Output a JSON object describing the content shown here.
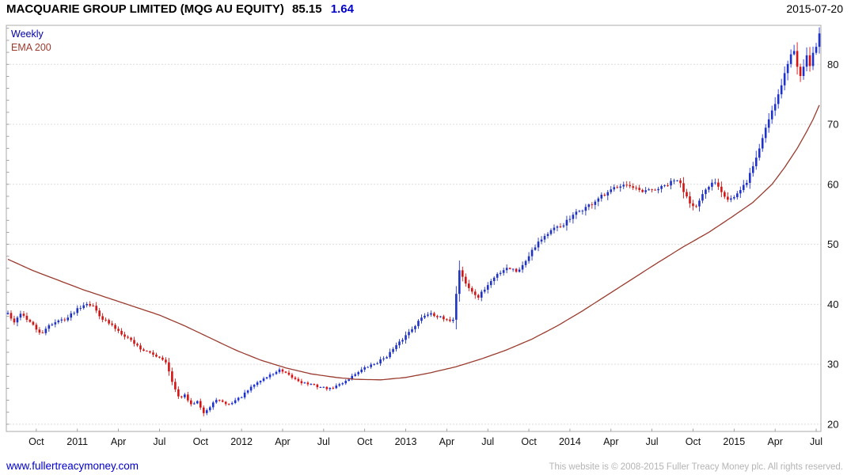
{
  "header": {
    "name": "MACQUARIE GROUP LIMITED (MQG AU EQUITY)",
    "price": "85.15",
    "change": "1.64",
    "date": "2015-07-20"
  },
  "legend": {
    "series": "Weekly",
    "ema": "EMA 200"
  },
  "footer": {
    "site": "www.fullertreacymoney.com",
    "copyright": "This website is © 2008-2015 Fuller Treacy Money plc. All rights reserved."
  },
  "colors": {
    "up": "#1e32c8",
    "down": "#d41414",
    "ema": "#9a3b2e",
    "grid": "#dcdcdc",
    "border": "#ababab",
    "tick": "#8a8a8a",
    "axis_text": "#111111",
    "legend_series": "#0000a8",
    "title_text": "#000000",
    "change_text": "#0000cc"
  },
  "chart_data": {
    "type": "candlestick",
    "title": "MACQUARIE GROUP LIMITED (MQG AU EQUITY) 85.15 1.64",
    "instrument": "MQG AU EQUITY",
    "interval": "Weekly",
    "overlay": "EMA 200",
    "last_price": 85.15,
    "change": 1.64,
    "as_of": "2015-07-20",
    "grid": "horizontal-only",
    "legend_position": "top-left",
    "ylim": [
      18.8,
      86.5
    ],
    "y_ticks": [
      20,
      30,
      40,
      50,
      60,
      70,
      80
    ],
    "weeks_total": 258,
    "x_ticks": [
      {
        "label": "Oct",
        "week": 9
      },
      {
        "label": "2011",
        "week": 22
      },
      {
        "label": "Apr",
        "week": 35
      },
      {
        "label": "Jul",
        "week": 48
      },
      {
        "label": "Oct",
        "week": 61
      },
      {
        "label": "2012",
        "week": 74
      },
      {
        "label": "Apr",
        "week": 87
      },
      {
        "label": "Jul",
        "week": 100
      },
      {
        "label": "Oct",
        "week": 113
      },
      {
        "label": "2013",
        "week": 126
      },
      {
        "label": "Apr",
        "week": 139
      },
      {
        "label": "Jul",
        "week": 152
      },
      {
        "label": "Oct",
        "week": 165
      },
      {
        "label": "2014",
        "week": 178
      },
      {
        "label": "Apr",
        "week": 191
      },
      {
        "label": "Jul",
        "week": 204
      },
      {
        "label": "Oct",
        "week": 217
      },
      {
        "label": "2015",
        "week": 230
      },
      {
        "label": "Apr",
        "week": 243
      },
      {
        "label": "Jul",
        "week": 256
      }
    ],
    "close_anchors": [
      [
        0,
        38.5
      ],
      [
        2,
        36.8
      ],
      [
        4,
        38.6
      ],
      [
        7,
        37.0
      ],
      [
        9,
        35.8
      ],
      [
        11,
        35.0
      ],
      [
        13,
        36.6
      ],
      [
        16,
        37.2
      ],
      [
        19,
        37.8
      ],
      [
        22,
        39.3
      ],
      [
        25,
        40.3
      ],
      [
        27,
        39.6
      ],
      [
        30,
        37.6
      ],
      [
        33,
        36.4
      ],
      [
        36,
        35.2
      ],
      [
        39,
        34.0
      ],
      [
        42,
        32.6
      ],
      [
        45,
        31.8
      ],
      [
        48,
        31.2
      ],
      [
        50,
        30.5
      ],
      [
        52,
        27.0
      ],
      [
        54,
        24.5
      ],
      [
        56,
        24.8
      ],
      [
        58,
        23.2
      ],
      [
        60,
        24.0
      ],
      [
        62,
        21.9
      ],
      [
        64,
        22.8
      ],
      [
        66,
        24.2
      ],
      [
        68,
        23.6
      ],
      [
        70,
        23.3
      ],
      [
        72,
        24.0
      ],
      [
        74,
        24.6
      ],
      [
        76,
        25.6
      ],
      [
        78,
        26.6
      ],
      [
        80,
        27.3
      ],
      [
        83,
        28.2
      ],
      [
        86,
        29.0
      ],
      [
        88,
        28.4
      ],
      [
        90,
        27.8
      ],
      [
        93,
        27.0
      ],
      [
        96,
        26.6
      ],
      [
        99,
        26.2
      ],
      [
        102,
        25.9
      ],
      [
        105,
        26.6
      ],
      [
        108,
        27.6
      ],
      [
        111,
        28.8
      ],
      [
        114,
        29.6
      ],
      [
        117,
        30.3
      ],
      [
        120,
        31.4
      ],
      [
        123,
        33.0
      ],
      [
        126,
        34.8
      ],
      [
        129,
        36.6
      ],
      [
        132,
        38.2
      ],
      [
        134,
        38.6
      ],
      [
        136,
        38.0
      ],
      [
        139,
        37.2
      ],
      [
        141,
        37.6
      ],
      [
        143,
        45.8
      ],
      [
        145,
        43.5
      ],
      [
        147,
        42.0
      ],
      [
        149,
        41.2
      ],
      [
        152,
        43.2
      ],
      [
        155,
        45.0
      ],
      [
        158,
        46.2
      ],
      [
        161,
        45.6
      ],
      [
        163,
        46.4
      ],
      [
        166,
        49.2
      ],
      [
        169,
        51.0
      ],
      [
        172,
        52.2
      ],
      [
        175,
        53.0
      ],
      [
        178,
        54.2
      ],
      [
        181,
        55.6
      ],
      [
        184,
        56.4
      ],
      [
        187,
        57.6
      ],
      [
        190,
        58.4
      ],
      [
        193,
        59.8
      ],
      [
        195,
        60.2
      ],
      [
        198,
        59.2
      ],
      [
        201,
        58.6
      ],
      [
        204,
        59.0
      ],
      [
        207,
        59.4
      ],
      [
        210,
        60.2
      ],
      [
        212,
        60.8
      ],
      [
        214,
        59.0
      ],
      [
        216,
        57.2
      ],
      [
        218,
        56.2
      ],
      [
        220,
        58.0
      ],
      [
        222,
        59.6
      ],
      [
        224,
        60.6
      ],
      [
        226,
        59.0
      ],
      [
        228,
        57.6
      ],
      [
        230,
        57.8
      ],
      [
        232,
        58.8
      ],
      [
        234,
        60.5
      ],
      [
        236,
        63.0
      ],
      [
        238,
        66.0
      ],
      [
        240,
        69.5
      ],
      [
        242,
        72.5
      ],
      [
        244,
        75.0
      ],
      [
        246,
        78.5
      ],
      [
        248,
        81.5
      ],
      [
        249,
        82.3
      ],
      [
        250,
        80.0
      ],
      [
        251,
        78.6
      ],
      [
        252,
        80.0
      ],
      [
        253,
        81.0
      ],
      [
        254,
        80.2
      ],
      [
        255,
        81.5
      ],
      [
        256,
        83.0
      ],
      [
        257,
        85.15
      ]
    ],
    "ema_anchors": [
      [
        0,
        47.5
      ],
      [
        8,
        45.6
      ],
      [
        16,
        44.0
      ],
      [
        24,
        42.4
      ],
      [
        32,
        41.0
      ],
      [
        40,
        39.6
      ],
      [
        48,
        38.2
      ],
      [
        56,
        36.4
      ],
      [
        64,
        34.4
      ],
      [
        72,
        32.4
      ],
      [
        80,
        30.7
      ],
      [
        88,
        29.4
      ],
      [
        96,
        28.4
      ],
      [
        104,
        27.8
      ],
      [
        110,
        27.5
      ],
      [
        118,
        27.4
      ],
      [
        126,
        27.8
      ],
      [
        134,
        28.6
      ],
      [
        142,
        29.6
      ],
      [
        150,
        30.9
      ],
      [
        158,
        32.4
      ],
      [
        166,
        34.2
      ],
      [
        174,
        36.4
      ],
      [
        182,
        38.9
      ],
      [
        190,
        41.6
      ],
      [
        198,
        44.3
      ],
      [
        206,
        47.0
      ],
      [
        214,
        49.6
      ],
      [
        222,
        52.0
      ],
      [
        230,
        54.8
      ],
      [
        236,
        57.0
      ],
      [
        242,
        60.0
      ],
      [
        246,
        62.8
      ],
      [
        250,
        66.0
      ],
      [
        253,
        68.8
      ],
      [
        255,
        70.8
      ],
      [
        257,
        73.2
      ]
    ]
  }
}
